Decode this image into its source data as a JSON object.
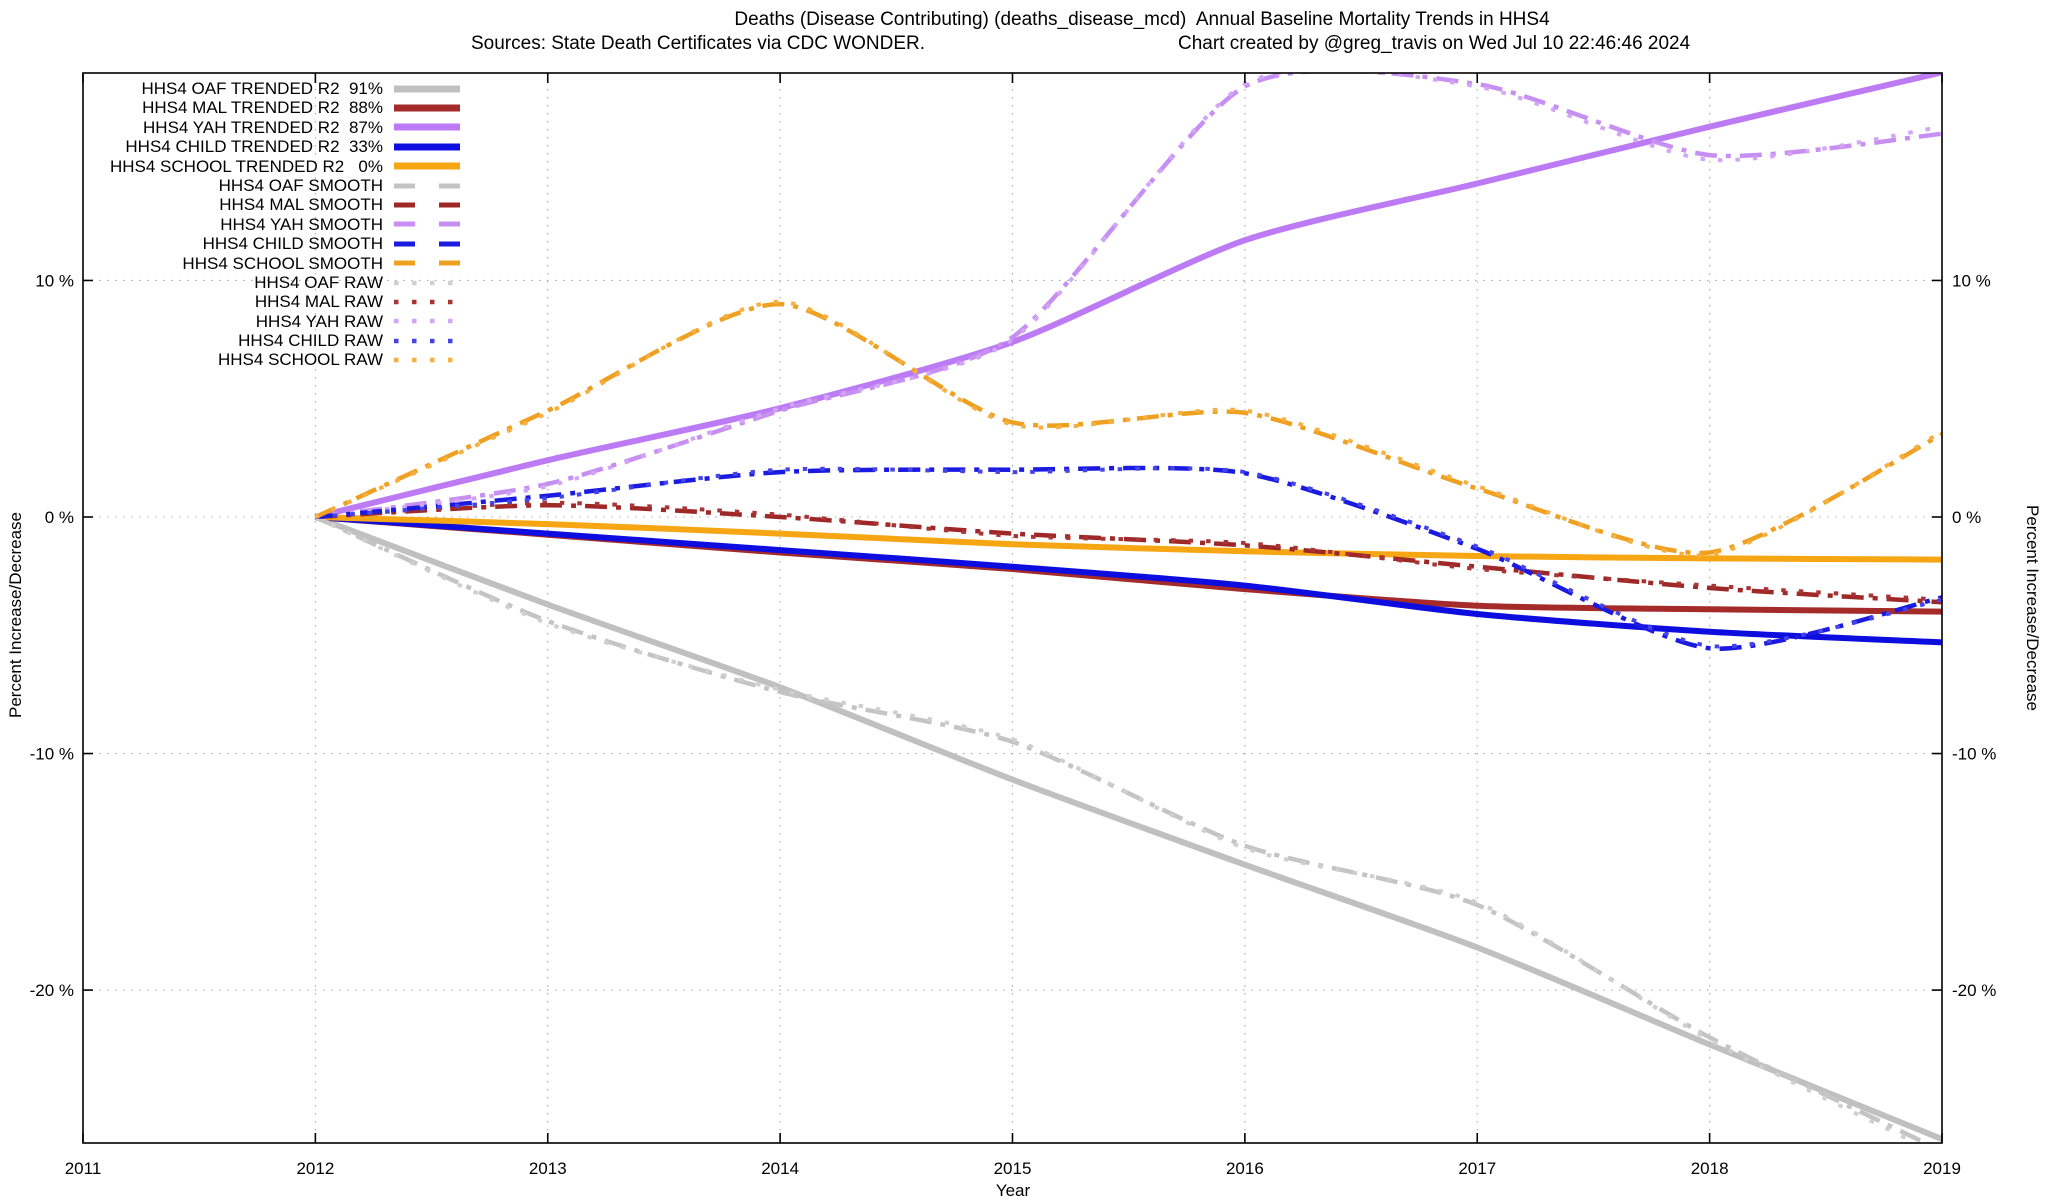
{
  "header": {
    "title": "Deaths (Disease Contributing) (deaths_disease_mcd)  Annual Baseline Mortality Trends in HHS4",
    "sources": "Sources: State Death Certificates via CDC WONDER.",
    "credit": "Chart created by @greg_travis on Wed Jul 10 22:46:46 2024"
  },
  "axes": {
    "x": {
      "label": "Year",
      "ticks": [
        2011,
        2012,
        2013,
        2014,
        2015,
        2016,
        2017,
        2018,
        2019
      ],
      "grid_years": [
        2012,
        2013,
        2014,
        2015,
        2016,
        2017,
        2018
      ]
    },
    "y": {
      "label_left": "Percent Increase/Decrease",
      "label_right": "Percent Increase/Decrease",
      "tick_labels": [
        "10 %",
        "0 %",
        "-10 %",
        "-20 %"
      ],
      "tick_values": [
        10,
        0,
        -10,
        -20
      ]
    }
  },
  "colors": {
    "gray": "#c0c0c0",
    "dark_red": "#a52a2a",
    "purple": "#bd7af5",
    "blue": "#0d0de0",
    "orange": "#f6a513",
    "grid": "#aaaaaa",
    "border": "#000000"
  },
  "chart_data": {
    "type": "line",
    "title": "Deaths (Disease Contributing) (deaths_disease_mcd)  Annual Baseline Mortality Trends in HHS4",
    "xlabel": "Year",
    "ylabel": "Percent Increase/Decrease",
    "xlim": [
      2011,
      2019
    ],
    "ylim": [
      -26.5,
      18.8
    ],
    "grid": true,
    "legend_position": "top-left",
    "x": [
      2012,
      2013,
      2014,
      2015,
      2016,
      2017,
      2018,
      2019
    ],
    "series": [
      {
        "id": "oaf-trended",
        "name": "HHS4 OAF TRENDED R2  91%",
        "style": "solid",
        "color": "#c0c0c0",
        "values": [
          0,
          -3.7,
          -7.2,
          -11.1,
          -14.7,
          -18.2,
          -22.3,
          -26.3
        ]
      },
      {
        "id": "mal-trended",
        "name": "HHS4 MAL TRENDED R2  88%",
        "style": "solid",
        "color": "#a52a2a",
        "values": [
          0,
          -0.75,
          -1.5,
          -2.2,
          -3.05,
          -3.75,
          -3.9,
          -4.0
        ]
      },
      {
        "id": "yah-trended",
        "name": "HHS4 YAH TRENDED R2  87%",
        "style": "solid",
        "color": "#bd7af5",
        "values": [
          0,
          2.4,
          4.6,
          7.4,
          11.7,
          14.1,
          16.5,
          18.8
        ]
      },
      {
        "id": "child-trended",
        "name": "HHS4 CHILD TRENDED R2  33%",
        "style": "solid",
        "color": "#0d0de0",
        "values": [
          0,
          -0.7,
          -1.4,
          -2.1,
          -2.9,
          -4.1,
          -4.85,
          -5.3
        ]
      },
      {
        "id": "school-trended",
        "name": "HHS4 SCHOOL TRENDED R2   0%",
        "style": "solid",
        "color": "#f6a513",
        "values": [
          0,
          -0.3,
          -0.7,
          -1.15,
          -1.45,
          -1.65,
          -1.75,
          -1.8
        ]
      },
      {
        "id": "oaf-smooth",
        "name": "HHS4 OAF SMOOTH",
        "style": "dashdot",
        "color": "#c4c4c4",
        "values": [
          0,
          -4.4,
          -7.4,
          -9.5,
          -13.9,
          -16.4,
          -22.0,
          -26.8
        ]
      },
      {
        "id": "mal-smooth",
        "name": "HHS4 MAL SMOOTH",
        "style": "dashdot",
        "color": "#9e2828",
        "values": [
          0,
          0.5,
          0.0,
          -0.7,
          -1.2,
          -2.1,
          -3.0,
          -3.6
        ]
      },
      {
        "id": "yah-smooth",
        "name": "HHS4 YAH SMOOTH",
        "style": "dashdot",
        "color": "#c88ff2",
        "values": [
          0,
          1.4,
          4.5,
          7.6,
          18.2,
          18.3,
          15.3,
          16.2
        ]
      },
      {
        "id": "child-smooth",
        "name": "HHS4 CHILD SMOOTH",
        "style": "dashdot",
        "color": "#1a1ae0",
        "values": [
          0,
          0.9,
          1.9,
          2.0,
          1.85,
          -1.35,
          -5.55,
          -3.4
        ]
      },
      {
        "id": "school-smooth",
        "name": "HHS4 SCHOOL SMOOTH",
        "style": "dashdot",
        "color": "#f0a020",
        "values": [
          0,
          4.5,
          9.0,
          4.0,
          4.4,
          1.2,
          -1.5,
          3.5
        ]
      },
      {
        "id": "oaf-raw",
        "name": "HHS4 OAF RAW",
        "style": "dotted",
        "color": "#cfcfcf",
        "values": [
          0,
          -4.5,
          -7.3,
          -9.4,
          -14.0,
          -16.3,
          -22.1,
          -27.0
        ]
      },
      {
        "id": "mal-raw",
        "name": "HHS4 MAL RAW",
        "style": "dotted",
        "color": "#a83434",
        "values": [
          0,
          0.6,
          0.1,
          -0.8,
          -1.1,
          -2.2,
          -2.9,
          -3.5
        ]
      },
      {
        "id": "yah-raw",
        "name": "HHS4 YAH RAW",
        "style": "dotted",
        "color": "#d2a5f7",
        "values": [
          0,
          1.3,
          4.6,
          7.5,
          18.3,
          18.2,
          15.1,
          16.5
        ]
      },
      {
        "id": "child-raw",
        "name": "HHS4 CHILD RAW",
        "style": "dotted",
        "color": "#4444e8",
        "values": [
          0,
          0.8,
          2.0,
          1.9,
          1.9,
          -1.25,
          -5.45,
          -3.5
        ]
      },
      {
        "id": "school-raw",
        "name": "HHS4 SCHOOL RAW",
        "style": "dotted",
        "color": "#f5b041",
        "values": [
          0,
          4.4,
          9.1,
          3.9,
          4.5,
          1.3,
          -1.6,
          3.6
        ]
      }
    ]
  }
}
